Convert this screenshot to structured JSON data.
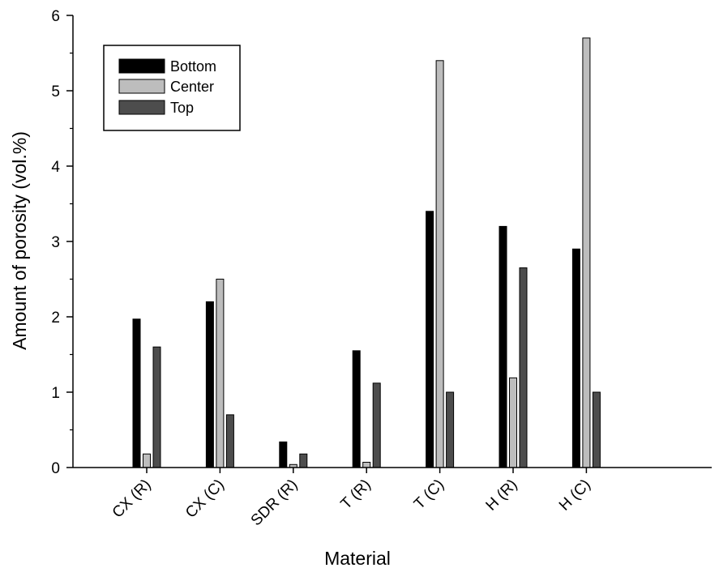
{
  "chart_data": {
    "type": "bar",
    "xlabel": "Material",
    "ylabel": "Amount of porosity (vol.%)",
    "ylim": [
      0,
      6
    ],
    "yticks": [
      0,
      1,
      2,
      3,
      4,
      5,
      6
    ],
    "grid": false,
    "legend_position": "top-left",
    "categories": [
      "CX (R)",
      "CX (C)",
      "SDR (R)",
      "T (R)",
      "T (C)",
      "H (R)",
      "H (C)"
    ],
    "series": [
      {
        "name": "Bottom",
        "color": "#000000",
        "values": [
          1.97,
          2.2,
          0.34,
          1.55,
          3.4,
          3.2,
          2.9
        ]
      },
      {
        "name": "Center",
        "color": "#bdbdbd",
        "values": [
          0.18,
          2.5,
          0.04,
          0.07,
          5.4,
          1.19,
          5.7
        ]
      },
      {
        "name": "Top",
        "color": "#4d4d4d",
        "values": [
          1.6,
          0.7,
          0.18,
          1.12,
          1.0,
          2.65,
          1.0
        ]
      }
    ]
  }
}
